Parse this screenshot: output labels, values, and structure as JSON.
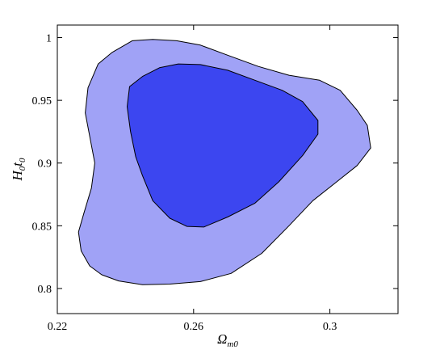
{
  "chart_data": {
    "type": "contour",
    "xlabel_base": "Ω",
    "xlabel_sub": "m0",
    "ylabel_parts": [
      "H",
      "0",
      "t",
      "0"
    ],
    "xlim": [
      0.22,
      0.32
    ],
    "ylim": [
      0.78,
      1.01
    ],
    "xticks": [
      0.22,
      0.26,
      0.3
    ],
    "xtick_labels": [
      "0.22",
      "0.26",
      "0.3"
    ],
    "yticks": [
      0.8,
      0.85,
      0.9,
      0.95,
      1.0
    ],
    "ytick_labels": [
      "0.8",
      "0.85",
      "0.9",
      "0.95",
      "1"
    ],
    "grid": false,
    "colors": {
      "outer": "#a0a2f6",
      "inner": "#3c46f0",
      "edge": "#000000"
    },
    "contours": [
      {
        "level": "outer",
        "points": [
          [
            0.242,
            0.9975
          ],
          [
            0.248,
            0.9985
          ],
          [
            0.255,
            0.9975
          ],
          [
            0.262,
            0.994
          ],
          [
            0.27,
            0.986
          ],
          [
            0.279,
            0.977
          ],
          [
            0.288,
            0.97
          ],
          [
            0.297,
            0.966
          ],
          [
            0.303,
            0.958
          ],
          [
            0.308,
            0.942
          ],
          [
            0.311,
            0.93
          ],
          [
            0.312,
            0.912
          ],
          [
            0.308,
            0.898
          ],
          [
            0.302,
            0.885
          ],
          [
            0.295,
            0.87
          ],
          [
            0.288,
            0.85
          ],
          [
            0.28,
            0.828
          ],
          [
            0.271,
            0.812
          ],
          [
            0.262,
            0.8055
          ],
          [
            0.253,
            0.8035
          ],
          [
            0.245,
            0.803
          ],
          [
            0.238,
            0.806
          ],
          [
            0.233,
            0.811
          ],
          [
            0.2295,
            0.818
          ],
          [
            0.227,
            0.83
          ],
          [
            0.2262,
            0.845
          ],
          [
            0.2278,
            0.86
          ],
          [
            0.23,
            0.88
          ],
          [
            0.231,
            0.9
          ],
          [
            0.2296,
            0.92
          ],
          [
            0.2282,
            0.94
          ],
          [
            0.229,
            0.96
          ],
          [
            0.232,
            0.979
          ],
          [
            0.236,
            0.988
          ]
        ]
      },
      {
        "level": "inner",
        "points": [
          [
            0.2555,
            0.979
          ],
          [
            0.262,
            0.9785
          ],
          [
            0.27,
            0.974
          ],
          [
            0.278,
            0.966
          ],
          [
            0.286,
            0.958
          ],
          [
            0.292,
            0.949
          ],
          [
            0.2965,
            0.934
          ],
          [
            0.2965,
            0.923
          ],
          [
            0.292,
            0.906
          ],
          [
            0.285,
            0.885
          ],
          [
            0.278,
            0.868
          ],
          [
            0.27,
            0.857
          ],
          [
            0.263,
            0.849
          ],
          [
            0.258,
            0.8495
          ],
          [
            0.253,
            0.856
          ],
          [
            0.248,
            0.87
          ],
          [
            0.245,
            0.89
          ],
          [
            0.243,
            0.905
          ],
          [
            0.2415,
            0.925
          ],
          [
            0.2405,
            0.945
          ],
          [
            0.2412,
            0.961
          ],
          [
            0.245,
            0.969
          ],
          [
            0.25,
            0.976
          ]
        ]
      }
    ]
  }
}
